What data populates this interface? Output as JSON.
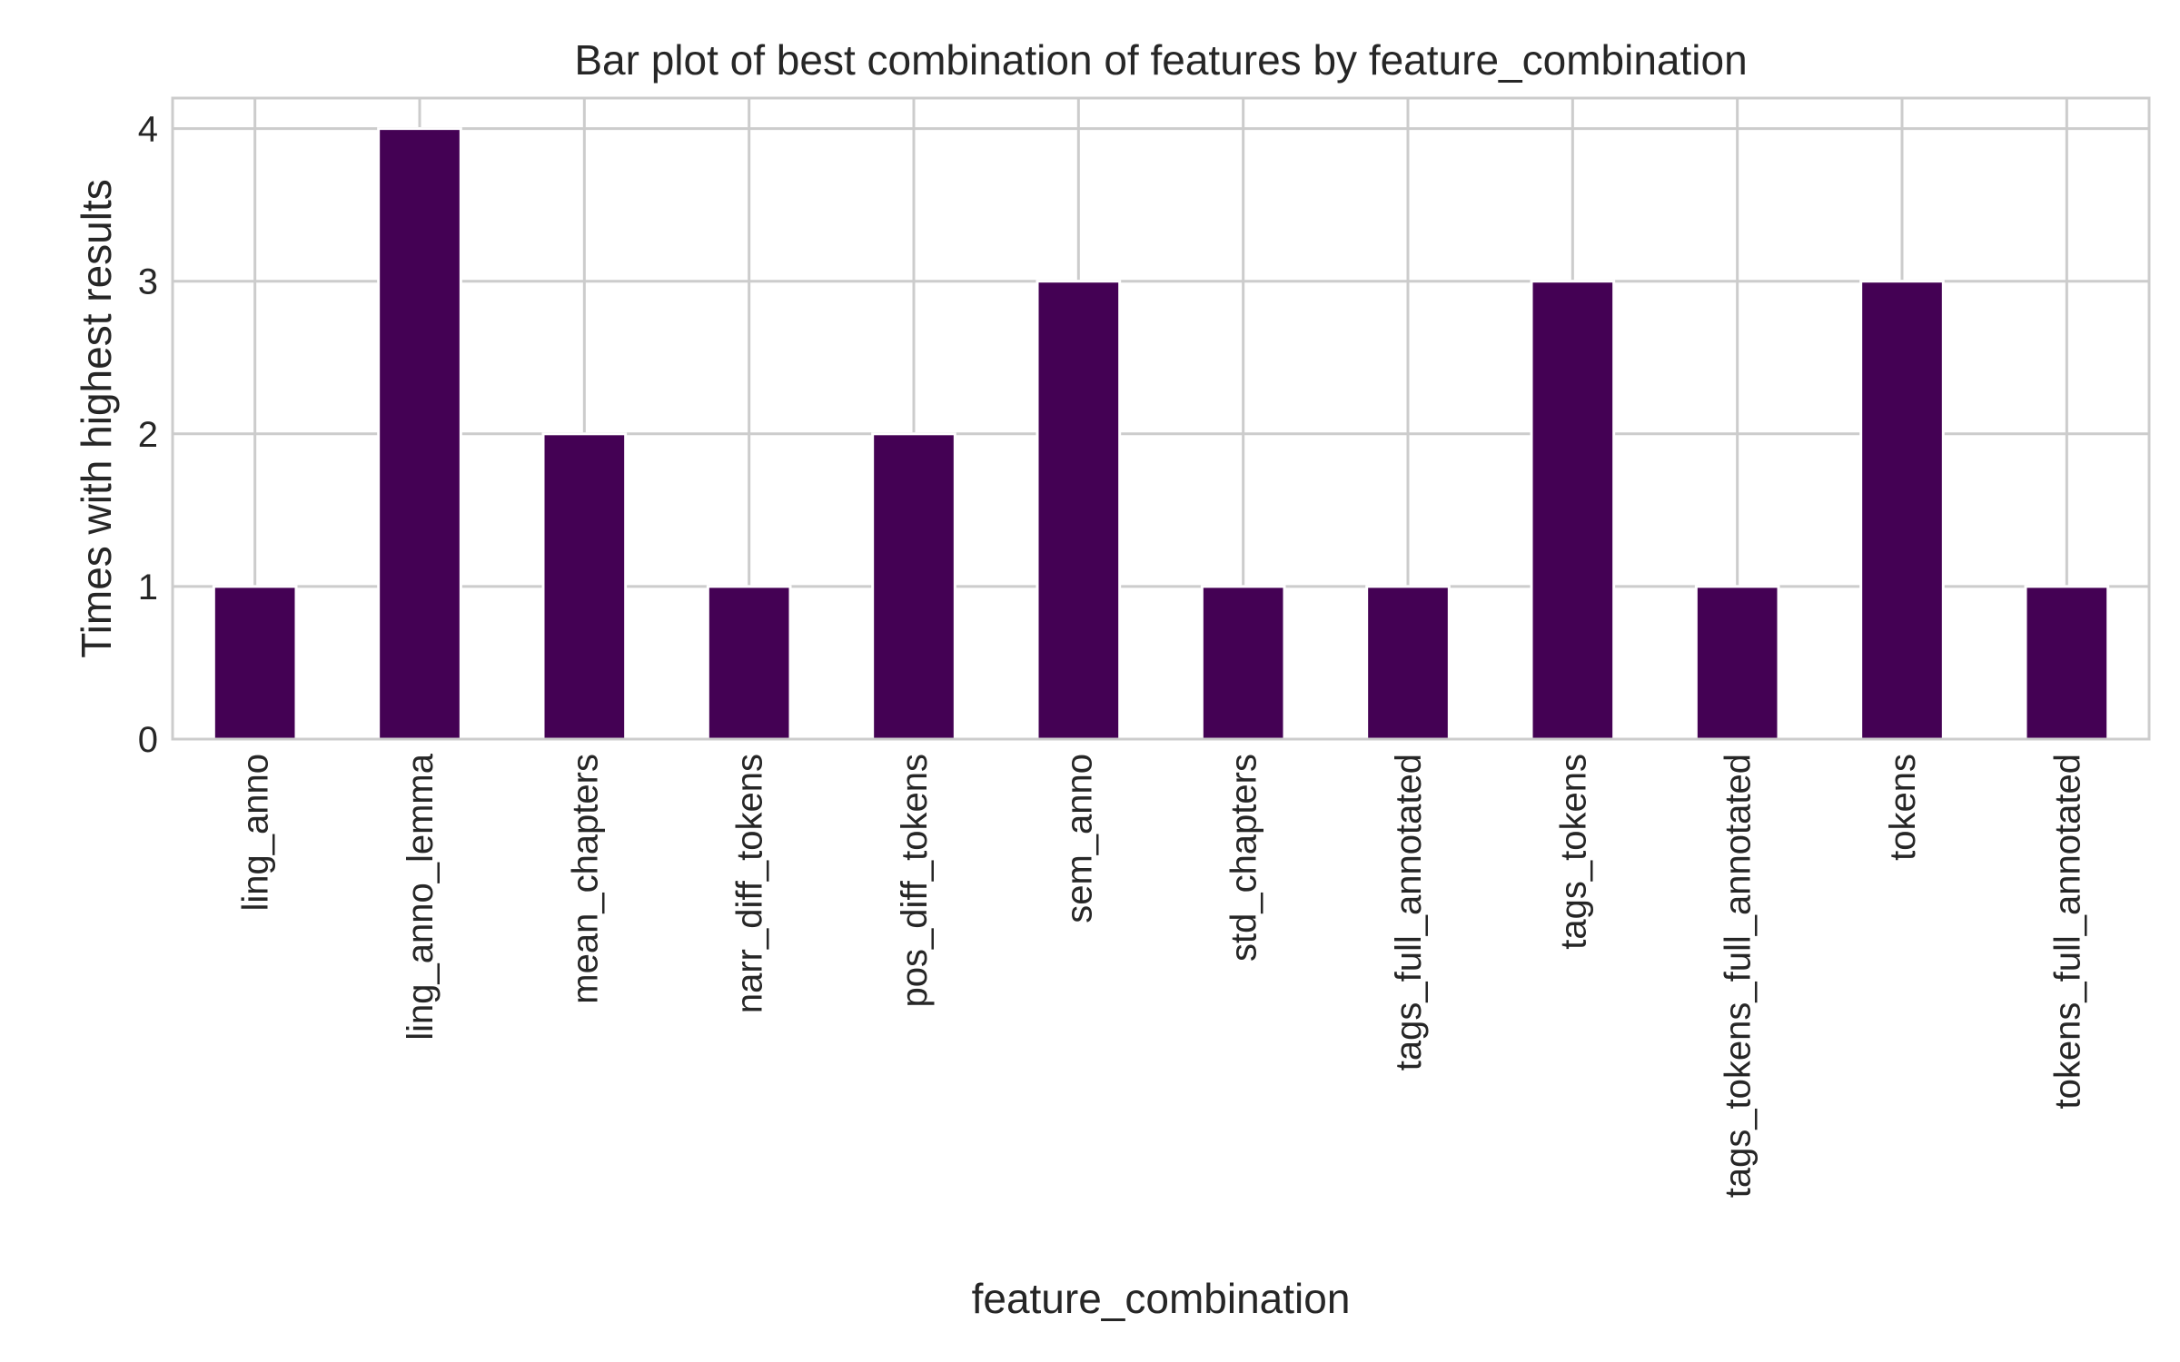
{
  "chart_data": {
    "type": "bar",
    "title": "Bar plot of best combination of features by feature_combination",
    "xlabel": "feature_combination",
    "ylabel": "Times with highest results",
    "categories": [
      "ling_anno",
      "ling_anno_lemma",
      "mean_chapters",
      "narr_diff_tokens",
      "pos_diff_tokens",
      "sem_anno",
      "std_chapters",
      "tags_full_annotated",
      "tags_tokens",
      "tags_tokens_full_annotated",
      "tokens",
      "tokens_full_annotated"
    ],
    "values": [
      1,
      4,
      2,
      1,
      2,
      3,
      1,
      1,
      3,
      1,
      3,
      1
    ],
    "ylim": [
      0,
      4.2
    ],
    "yticks": [
      0,
      1,
      2,
      3,
      4
    ],
    "grid": true,
    "legend": "none",
    "bar_color": "#440154",
    "grid_color": "#cccccc",
    "frame_color": "#cccccc"
  }
}
